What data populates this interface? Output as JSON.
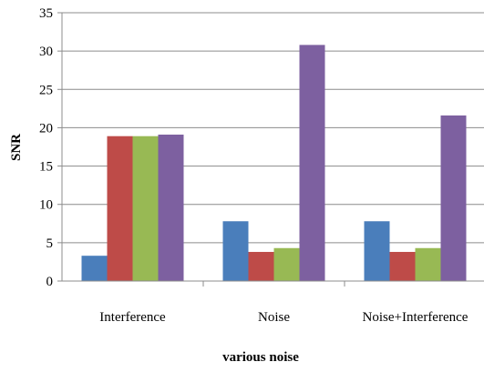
{
  "chart_data": {
    "type": "bar",
    "categories": [
      "Interference",
      "Noise",
      "Noise+Interference"
    ],
    "series": [
      {
        "color": "#4a7ebb",
        "values": [
          3.3,
          7.8,
          7.8
        ]
      },
      {
        "color": "#be4b48",
        "values": [
          18.9,
          3.8,
          3.8
        ]
      },
      {
        "color": "#98b954",
        "values": [
          18.9,
          4.3,
          4.3
        ]
      },
      {
        "color": "#7d60a0",
        "values": [
          19.1,
          30.8,
          21.6
        ]
      }
    ],
    "xlabel": "various noise",
    "ylabel": "SNR",
    "ylim": [
      0,
      35
    ],
    "yticks": [
      0,
      5,
      10,
      15,
      20,
      25,
      30,
      35
    ],
    "grid": true,
    "legend": "none"
  }
}
